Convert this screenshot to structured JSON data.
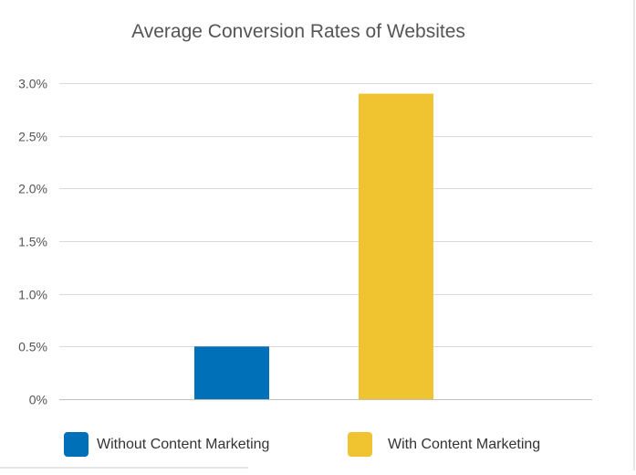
{
  "chart_data": {
    "type": "bar",
    "title": "Average Conversion Rates of Websites",
    "xlabel": "",
    "ylabel": "",
    "categories": [
      "Without Content Marketing",
      "With Content Marketing"
    ],
    "series": [
      {
        "values": [
          0.5,
          2.9
        ]
      }
    ],
    "bar_colors": [
      "#0070b8",
      "#f0c330"
    ],
    "ylim": [
      0,
      3
    ],
    "yticks": [
      {
        "value": 0,
        "label": "0%"
      },
      {
        "value": 0.5,
        "label": "0.5%"
      },
      {
        "value": 1,
        "label": "1.0%"
      },
      {
        "value": 1.5,
        "label": "1.5%"
      },
      {
        "value": 2,
        "label": "2.0%"
      },
      {
        "value": 2.5,
        "label": "2.5%"
      },
      {
        "value": 3,
        "label": "3.0%"
      }
    ],
    "grid": true,
    "legend": {
      "position": "bottom",
      "entries": [
        {
          "label": "Without Content Marketing",
          "color": "#0070b8"
        },
        {
          "label": "With Content Marketing",
          "color": "#f0c330"
        }
      ]
    },
    "colors": {
      "title": "#555555",
      "tick_label": "#555555",
      "legend_label": "#333333",
      "grid": "#d9d9d9",
      "axis": "#bfbfbf"
    }
  }
}
